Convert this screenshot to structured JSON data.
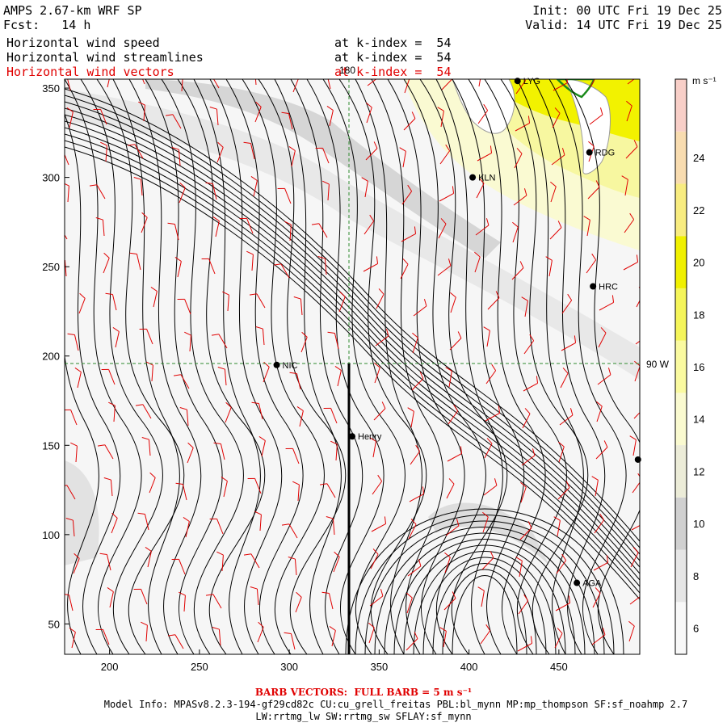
{
  "header": {
    "model": "AMPS 2.67-km WRF SP",
    "fcst": "Fcst:   14 h",
    "init": "Init: 00 UTC Fri 19 Dec 25",
    "valid": "Valid: 14 UTC Fri 19 Dec 25",
    "fields": [
      {
        "name": "Horizontal wind speed",
        "level": "at k-index =  54",
        "color": "#000000"
      },
      {
        "name": "Horizontal wind streamlines",
        "level": "at k-index =  54",
        "color": "#000000"
      },
      {
        "name": "Horizontal wind vectors",
        "level": "at k-index =  54",
        "color": "#e00000"
      }
    ]
  },
  "map": {
    "x_ticks": [
      "200",
      "250",
      "300",
      "350",
      "400",
      "450"
    ],
    "y_ticks": [
      "50",
      "100",
      "150",
      "200",
      "250",
      "300",
      "350"
    ],
    "x_range": [
      175,
      495
    ],
    "y_range": [
      33,
      355
    ],
    "meridian_label": "180",
    "parallel_label": "90 W",
    "stations": [
      {
        "name": "LYG",
        "x": 427,
        "y": 354
      },
      {
        "name": "RDG",
        "x": 467,
        "y": 314
      },
      {
        "name": "KLN",
        "x": 402,
        "y": 300
      },
      {
        "name": "HRC",
        "x": 469,
        "y": 239
      },
      {
        "name": "NIC",
        "x": 293,
        "y": 195
      },
      {
        "name": "Henry",
        "x": 335,
        "y": 155
      },
      {
        "name": "",
        "x": 494,
        "y": 142
      },
      {
        "name": "AGA",
        "x": 460,
        "y": 73
      }
    ],
    "colors": {
      "streamline": "#000000",
      "barb": "#e00000",
      "grid": "#2e8b2e",
      "coast": "#1a8a1a"
    }
  },
  "colorbar": {
    "unit": "m s⁻¹",
    "labels": [
      "6",
      "8",
      "10",
      "12",
      "14",
      "16",
      "18",
      "20",
      "22",
      "24"
    ],
    "bins": [
      {
        "from": 5,
        "to": 7,
        "color": "#f8f8f8"
      },
      {
        "from": 7,
        "to": 9,
        "color": "#e6e6e6"
      },
      {
        "from": 9,
        "to": 11,
        "color": "#d0d0d0"
      },
      {
        "from": 11,
        "to": 13,
        "color": "#ececd8"
      },
      {
        "from": 13,
        "to": 15,
        "color": "#fafad0"
      },
      {
        "from": 15,
        "to": 17,
        "color": "#fafaa0"
      },
      {
        "from": 17,
        "to": 19,
        "color": "#f5f55a"
      },
      {
        "from": 19,
        "to": 21,
        "color": "#f0f000"
      },
      {
        "from": 21,
        "to": 23,
        "color": "#f8ec80"
      },
      {
        "from": 23,
        "to": 25,
        "color": "#f8dcb0"
      },
      {
        "from": 25,
        "to": 27,
        "color": "#f8cfc8"
      }
    ]
  },
  "footer": {
    "barb": "BARB VECTORS:  FULL BARB = 5 m s⁻¹",
    "model_info": "Model Info: MPASv8.2.3-194-gf29cd82c CU:cu_grell_freitas PBL:bl_mynn MP:mp_thompson SF:sf_noahmp 2.7",
    "physics": "LW:rrtmg_lw SW:rrtmg_sw SFLAY:sf_mynn"
  }
}
